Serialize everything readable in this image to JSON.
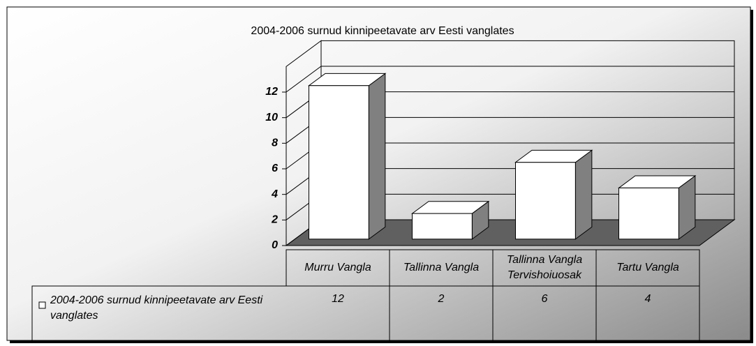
{
  "chart_data": {
    "type": "bar3d",
    "title": "2004-2006 surnud kinnipeetavate arv Eesti vanglates",
    "categories": [
      "Murru Vangla",
      "Tallinna Vangla",
      "Tallinna Vangla Tervishoiuosak",
      "Tartu Vangla"
    ],
    "series": [
      {
        "name": "2004-2006 surnud kinnipeetavate arv Eesti vanglates",
        "color": "#ffffff",
        "values": [
          12,
          2,
          6,
          4
        ]
      }
    ],
    "ylim": [
      0,
      14
    ],
    "yticks": [
      0,
      2,
      4,
      6,
      8,
      10,
      12
    ],
    "grid": true,
    "data_table": true
  }
}
